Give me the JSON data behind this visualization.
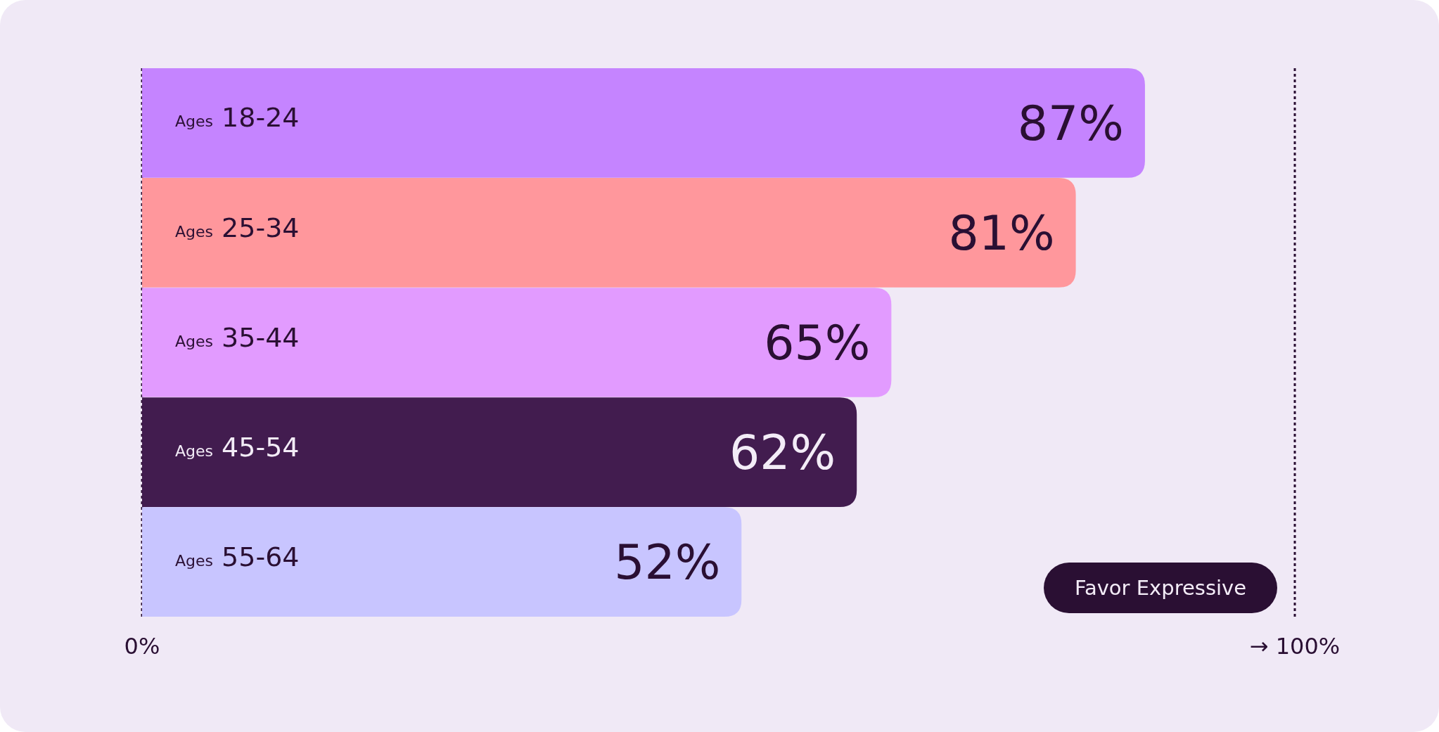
{
  "chart_data": {
    "type": "bar",
    "orientation": "horizontal",
    "categories": [
      "Ages 18-24",
      "Ages 25-34",
      "Ages 35-44",
      "Ages 45-54",
      "Ages 55-64"
    ],
    "values": [
      87,
      81,
      65,
      62,
      52
    ],
    "colors": [
      "#c584ff",
      "#ff979c",
      "#e29bff",
      "#421c4f",
      "#c8c5ff"
    ],
    "value_labels": [
      "87%",
      "81%",
      "65%",
      "62%",
      "52%"
    ],
    "xlim": [
      0,
      100
    ],
    "xticks": [
      {
        "value": 0,
        "label": "0%"
      },
      {
        "value": 100,
        "label": "→ 100%"
      }
    ],
    "grid": "x",
    "annotations": [
      "Favor Expressive"
    ]
  }
}
